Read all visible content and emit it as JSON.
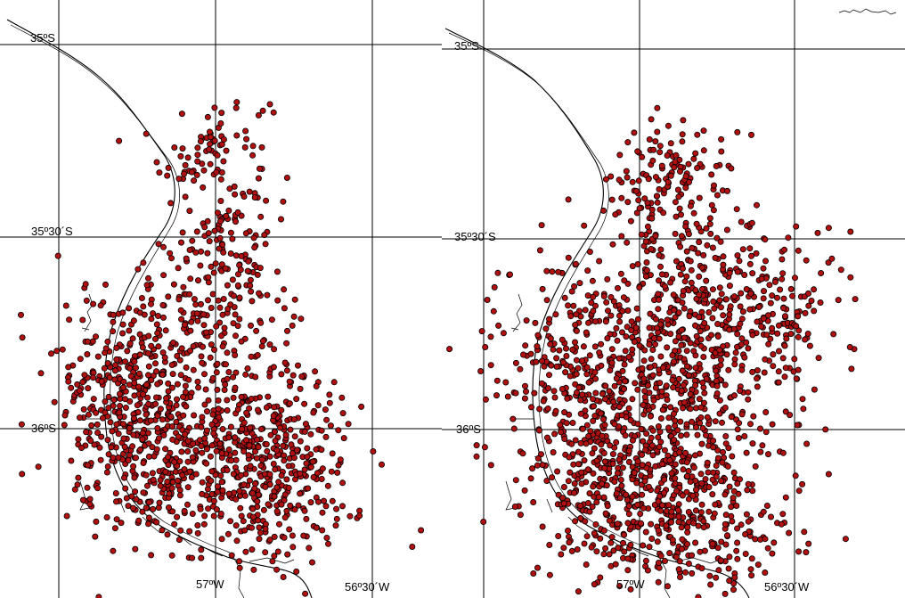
{
  "panels": [
    {
      "id": "left",
      "labels": {
        "lat_35": "35ºS",
        "lat_35_30": "35º30´S",
        "lat_36": "36ºS",
        "lon_57": "57ºW",
        "lon_56_30": "56º30´W"
      },
      "point_color": "#b01010",
      "point_stroke": "#000000",
      "clusters": [
        {
          "lon": -57.09,
          "lat": -35.42,
          "sd": 0.03,
          "n": 3
        },
        {
          "lon": -57.0,
          "lat": -35.28,
          "sd": 0.08,
          "n": 90
        },
        {
          "lon": -56.97,
          "lat": -35.5,
          "sd": 0.06,
          "n": 40
        },
        {
          "lon": -56.98,
          "lat": -35.67,
          "sd": 0.1,
          "n": 160
        },
        {
          "lon": -57.27,
          "lat": -35.85,
          "sd": 0.11,
          "n": 260
        },
        {
          "lon": -57.2,
          "lat": -36.08,
          "sd": 0.12,
          "n": 330
        },
        {
          "lon": -56.82,
          "lat": -36.1,
          "sd": 0.12,
          "n": 420
        },
        {
          "lon": -56.95,
          "lat": -35.95,
          "sd": 0.12,
          "n": 90
        }
      ]
    },
    {
      "id": "right",
      "labels": {
        "lat_35": "35ºS",
        "lat_35_30": "35º30´S",
        "lat_36": "36ºS",
        "lon_57": "57ºW",
        "lon_56_30": "56º30´W"
      },
      "point_color": "#b01010",
      "point_stroke": "#000000",
      "clusters": [
        {
          "lon": -56.93,
          "lat": -35.33,
          "sd": 0.08,
          "n": 110
        },
        {
          "lon": -56.85,
          "lat": -35.66,
          "sd": 0.15,
          "n": 380
        },
        {
          "lon": -56.56,
          "lat": -35.7,
          "sd": 0.1,
          "n": 120
        },
        {
          "lon": -57.18,
          "lat": -35.85,
          "sd": 0.13,
          "n": 300
        },
        {
          "lon": -56.85,
          "lat": -35.9,
          "sd": 0.13,
          "n": 200
        },
        {
          "lon": -57.05,
          "lat": -36.15,
          "sd": 0.13,
          "n": 420
        },
        {
          "lon": -56.78,
          "lat": -36.22,
          "sd": 0.13,
          "n": 260
        }
      ],
      "outliers": [
        {
          "lon": -56.39,
          "lat": -35.47
        },
        {
          "lon": -56.32,
          "lat": -35.48
        },
        {
          "lon": -56.35,
          "lat": -35.58
        },
        {
          "lon": -56.32,
          "lat": -35.6
        },
        {
          "lon": -56.45,
          "lat": -35.78
        }
      ]
    }
  ],
  "top_right_coast_fragment": "coastline"
}
